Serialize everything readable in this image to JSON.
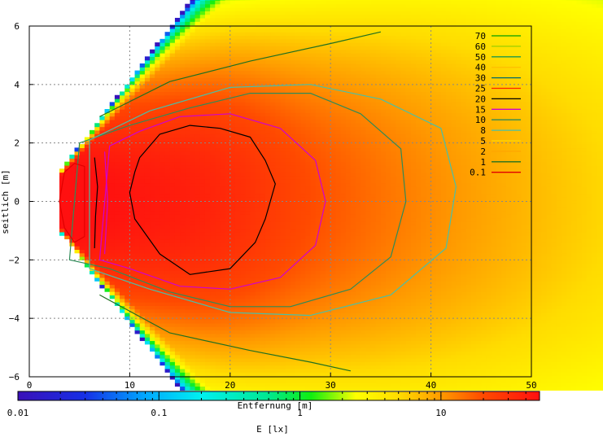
{
  "chart_data": {
    "type": "heatmap",
    "title": "",
    "xlabel": "Entfernung [m]",
    "ylabel": "seitlich [m]",
    "xlim": [
      0,
      50
    ],
    "ylim": [
      -6,
      6
    ],
    "x_ticks": [
      0,
      10,
      20,
      30,
      40,
      50
    ],
    "y_ticks": [
      -6,
      -4,
      -2,
      0,
      2,
      4,
      6
    ],
    "grid": true,
    "colorbar": {
      "label": "E [lx]",
      "scale": "log",
      "range": [
        0.01,
        50
      ],
      "tick_labels": [
        "0.01",
        "0.1",
        "1",
        "10"
      ],
      "tick_values": [
        0.01,
        0.1,
        1,
        10
      ],
      "stops": [
        {
          "value": 0.01,
          "color": "#3a10b8"
        },
        {
          "value": 0.03,
          "color": "#1630e6"
        },
        {
          "value": 0.08,
          "color": "#00a8ff"
        },
        {
          "value": 0.2,
          "color": "#00f0f0"
        },
        {
          "value": 0.6,
          "color": "#00e890"
        },
        {
          "value": 1.2,
          "color": "#10ee10"
        },
        {
          "value": 2.5,
          "color": "#ffff00"
        },
        {
          "value": 5,
          "color": "#ffdc00"
        },
        {
          "value": 10,
          "color": "#ff9a00"
        },
        {
          "value": 20,
          "color": "#ff4a00"
        },
        {
          "value": 50,
          "color": "#ff1010"
        }
      ]
    },
    "legend_placement": "top-right",
    "contour_levels": [
      {
        "label": "70",
        "color": "#00a000"
      },
      {
        "label": "60",
        "color": "#9ad000"
      },
      {
        "label": "50",
        "color": "#1c9a4a"
      },
      {
        "label": "40",
        "color": "#ffc000"
      },
      {
        "label": "30",
        "color": "#006a6a"
      },
      {
        "label": "25",
        "color": "#ff2000"
      },
      {
        "label": "20",
        "color": "#000000"
      },
      {
        "label": "15",
        "color": "#d000d0"
      },
      {
        "label": "10",
        "color": "#2e8b57"
      },
      {
        "label": "8",
        "color": "#48c0a8"
      },
      {
        "label": "5",
        "color": "#ffd700"
      },
      {
        "label": "2",
        "color": "#ffa500"
      },
      {
        "label": "1",
        "color": "#207020"
      },
      {
        "label": "0.1",
        "color": "#e00000"
      }
    ],
    "contours": [
      {
        "level": "20",
        "points": [
          [
            11,
            1.5
          ],
          [
            13,
            2.3
          ],
          [
            16,
            2.6
          ],
          [
            19,
            2.5
          ],
          [
            22,
            2.2
          ],
          [
            23.5,
            1.4
          ],
          [
            24.5,
            0.6
          ],
          [
            23.5,
            -0.6
          ],
          [
            22.5,
            -1.4
          ],
          [
            20,
            -2.3
          ],
          [
            16,
            -2.5
          ],
          [
            13,
            -1.8
          ],
          [
            10.5,
            -0.6
          ],
          [
            10,
            0.3
          ],
          [
            10.5,
            1.0
          ]
        ]
      },
      {
        "level": "15",
        "points": [
          [
            8,
            1.9
          ],
          [
            11,
            2.4
          ],
          [
            15,
            2.9
          ],
          [
            20,
            3.0
          ],
          [
            25,
            2.5
          ],
          [
            28.5,
            1.4
          ],
          [
            29.5,
            0
          ],
          [
            28.5,
            -1.5
          ],
          [
            25,
            -2.6
          ],
          [
            20,
            -3.0
          ],
          [
            15,
            -2.9
          ],
          [
            10,
            -2.3
          ],
          [
            7,
            -2.0
          ]
        ]
      },
      {
        "level": "10",
        "points": [
          [
            5,
            2.0
          ],
          [
            10,
            2.6
          ],
          [
            16,
            3.2
          ],
          [
            22,
            3.7
          ],
          [
            28,
            3.7
          ],
          [
            33,
            3.0
          ],
          [
            37,
            1.8
          ],
          [
            37.5,
            0
          ],
          [
            36,
            -1.9
          ],
          [
            32,
            -3.0
          ],
          [
            26,
            -3.6
          ],
          [
            20,
            -3.6
          ],
          [
            14,
            -3.1
          ],
          [
            8,
            -2.3
          ],
          [
            4,
            -2.0
          ]
        ]
      },
      {
        "level": "8",
        "points": [
          [
            6,
            2.1
          ],
          [
            12,
            3.1
          ],
          [
            20,
            3.9
          ],
          [
            28,
            4.0
          ],
          [
            35,
            3.5
          ],
          [
            41,
            2.5
          ],
          [
            42.5,
            0.5
          ],
          [
            41.5,
            -1.6
          ],
          [
            36,
            -3.2
          ],
          [
            28,
            -3.9
          ],
          [
            20,
            -3.8
          ],
          [
            12,
            -3.0
          ],
          [
            6,
            -2.3
          ]
        ]
      },
      {
        "level": "1",
        "points": [
          [
            7,
            2.9
          ],
          [
            14,
            4.1
          ],
          [
            22,
            4.8
          ],
          [
            30,
            5.4
          ],
          [
            35,
            5.8
          ]
        ]
      },
      {
        "level": "1",
        "points": [
          [
            7,
            -3.2
          ],
          [
            14,
            -4.5
          ],
          [
            22,
            -5.1
          ],
          [
            28,
            -5.5
          ],
          [
            32,
            -5.8
          ]
        ]
      }
    ],
    "hot_core_contours": [
      {
        "level": "0.1",
        "points": [
          [
            3.5,
            1.0
          ],
          [
            4.5,
            1.3
          ],
          [
            5.5,
            1.2
          ],
          [
            5.5,
            -1.2
          ],
          [
            4.5,
            -1.4
          ],
          [
            3.5,
            -0.9
          ],
          [
            3,
            0
          ]
        ]
      },
      {
        "level": "20",
        "points": [
          [
            6.5,
            1.5
          ],
          [
            6.8,
            0.5
          ],
          [
            6.6,
            -0.5
          ],
          [
            6.5,
            -1.6
          ]
        ]
      },
      {
        "level": "15",
        "points": [
          [
            7.5,
            1.7
          ],
          [
            7.8,
            0
          ],
          [
            7.5,
            -1.8
          ]
        ]
      }
    ]
  }
}
